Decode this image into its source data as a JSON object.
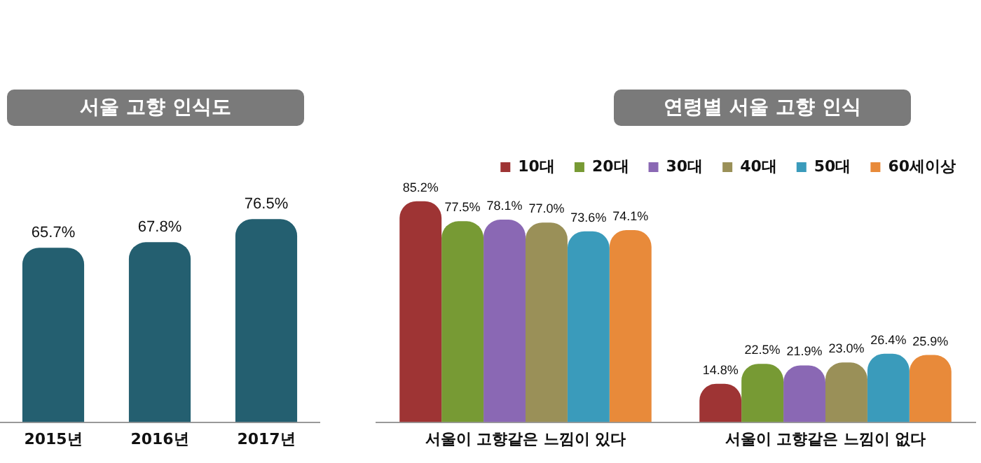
{
  "chart_data": [
    {
      "type": "bar",
      "title": "서울 고향 인식도",
      "categories": [
        "2015년",
        "2016년",
        "2017년"
      ],
      "values": [
        65.7,
        67.8,
        76.5
      ],
      "value_labels": [
        "65.7%",
        "67.8%",
        "76.5%"
      ],
      "color": "#245f70",
      "tick_labels": "x",
      "grid": false,
      "legend": false
    },
    {
      "type": "bar",
      "title": "연령별 서울 고향 인식",
      "categories": [
        "서울이 고향같은 느낌이 있다",
        "서울이 고향같은 느낌이 없다"
      ],
      "tick_labels": "x",
      "grid": false,
      "legend": "top right",
      "series": [
        {
          "name": "10대",
          "color": "#9e3434",
          "values": [
            85.2,
            14.8
          ],
          "value_labels": [
            "85.2%",
            "14.8%"
          ]
        },
        {
          "name": "20대",
          "color": "#779a34",
          "values": [
            77.5,
            22.5
          ],
          "value_labels": [
            "77.5%",
            "22.5%"
          ]
        },
        {
          "name": "30대",
          "color": "#8a68b4",
          "values": [
            78.1,
            21.9
          ],
          "value_labels": [
            "78.1%",
            "21.9%"
          ]
        },
        {
          "name": "40대",
          "color": "#9a9058",
          "values": [
            77.0,
            23.0
          ],
          "value_labels": [
            "77.0%",
            "23.0%"
          ]
        },
        {
          "name": "50대",
          "color": "#3a9bbb",
          "values": [
            73.6,
            26.4
          ],
          "value_labels": [
            "73.6%",
            "26.4%"
          ]
        },
        {
          "name": "60세이상",
          "color": "#e88a3a",
          "values": [
            74.1,
            25.9
          ],
          "value_labels": [
            "74.1%",
            "25.9%"
          ]
        }
      ]
    }
  ]
}
